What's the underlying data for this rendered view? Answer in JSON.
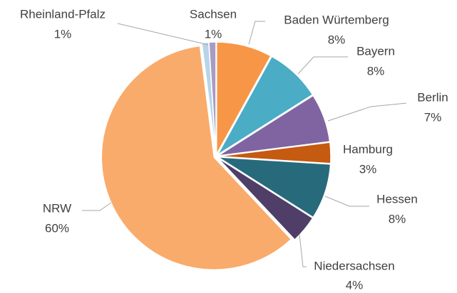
{
  "chart_data": {
    "type": "pie",
    "categories": [
      "Baden Würtemberg",
      "Bayern",
      "Berlin",
      "Hamburg",
      "Hessen",
      "Niedersachsen",
      "NRW",
      "Rheinland-Pfalz",
      "Sachsen"
    ],
    "values": [
      8,
      8,
      7,
      3,
      8,
      4,
      60,
      1,
      1
    ],
    "value_labels": [
      "8%",
      "8%",
      "7%",
      "3%",
      "8%",
      "4%",
      "60%",
      "1%",
      "1%"
    ],
    "colors": [
      "#f79646",
      "#4bacc6",
      "#8064a2",
      "#c55a11",
      "#276a7c",
      "#4f3e67",
      "#f9ab6b",
      "#b7d5e6",
      "#a99bc4"
    ]
  }
}
